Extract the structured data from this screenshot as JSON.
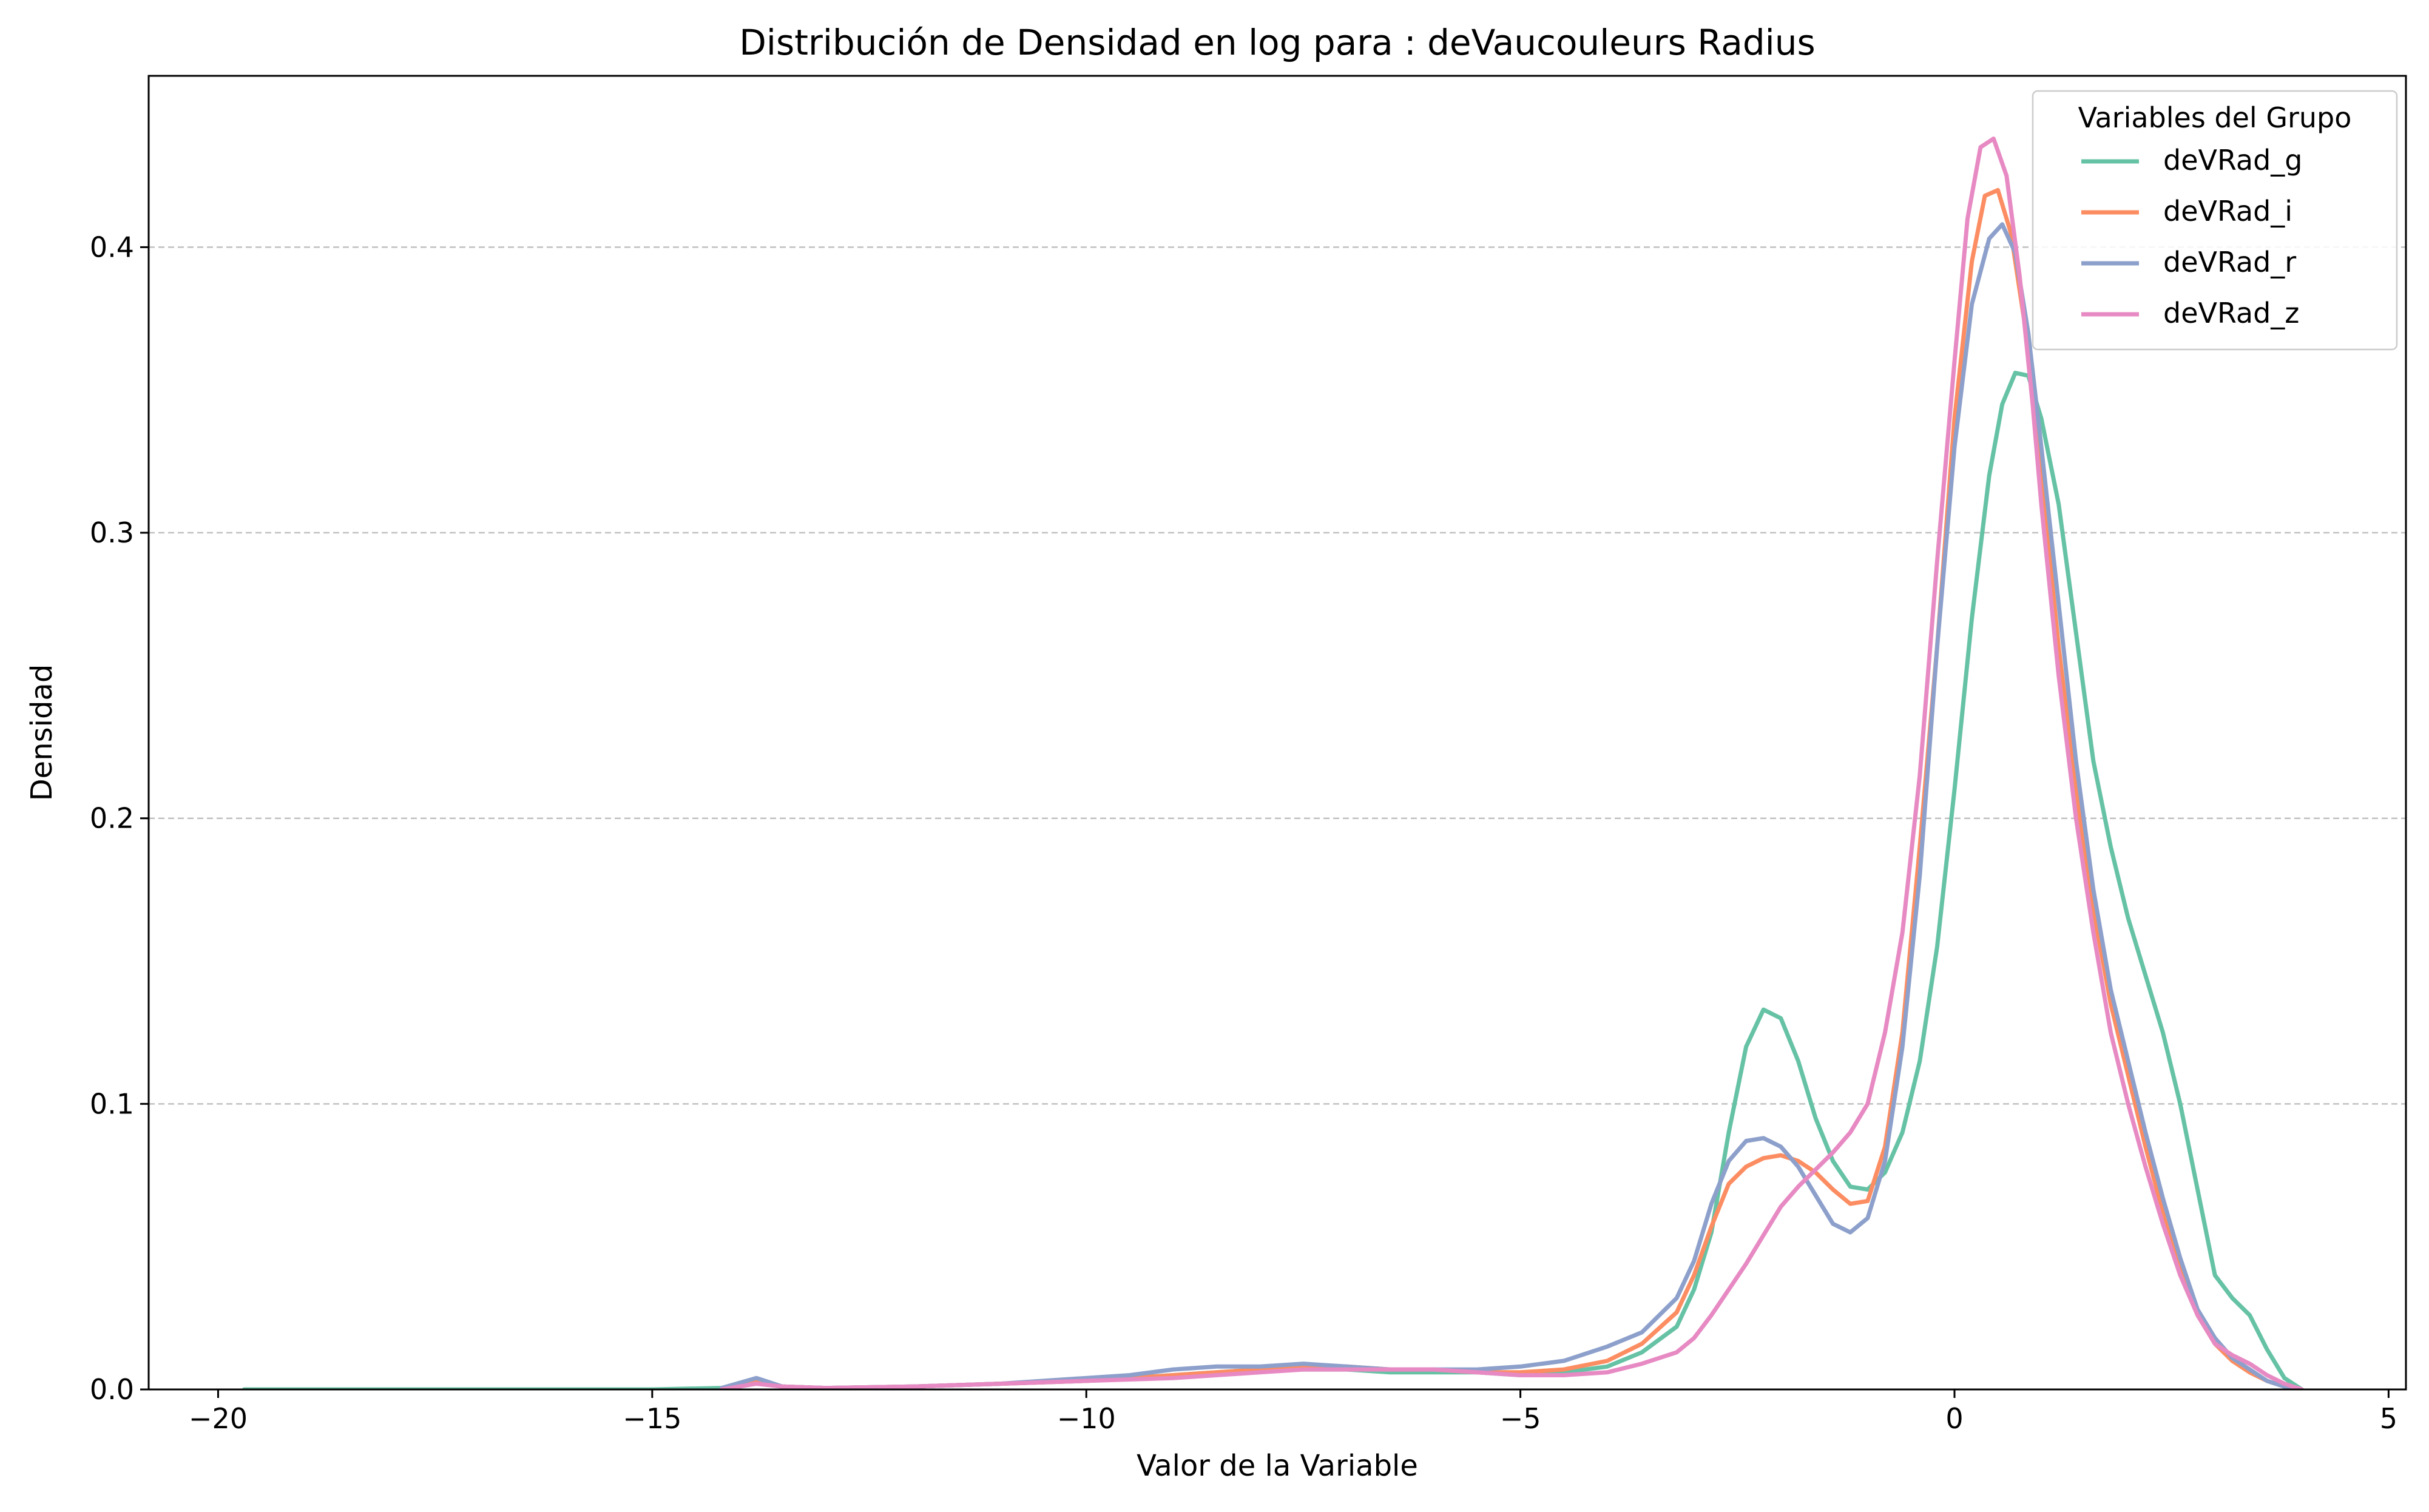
{
  "chart_data": {
    "type": "line",
    "title": "Distribución de Densidad en log para : deVaucouleurs Radius",
    "xlabel": "Valor de la Variable",
    "ylabel": "Densidad",
    "xlim": [
      -20.8,
      5.2
    ],
    "ylim": [
      0,
      0.46
    ],
    "x_ticks": [
      -20,
      -15,
      -10,
      -5,
      0,
      5
    ],
    "x_tick_labels": [
      "−20",
      "−15",
      "−10",
      "−5",
      "0",
      "5"
    ],
    "y_ticks": [
      0.0,
      0.1,
      0.2,
      0.3,
      0.4
    ],
    "y_tick_labels": [
      "0.0",
      "0.1",
      "0.2",
      "0.3",
      "0.4"
    ],
    "grid": "y dashed",
    "legend": {
      "title": "Variables del Grupo",
      "placement": "top-right"
    },
    "series": [
      {
        "name": "deVRad_g",
        "color": "#66c2a5",
        "points": [
          [
            -19.7,
            0.0
          ],
          [
            -15,
            0.0
          ],
          [
            -14.2,
            0.0005
          ],
          [
            -13.8,
            0.003
          ],
          [
            -13.5,
            0.001
          ],
          [
            -13,
            0.0005
          ],
          [
            -12,
            0.001
          ],
          [
            -11,
            0.002
          ],
          [
            -10,
            0.003
          ],
          [
            -9,
            0.005
          ],
          [
            -8.5,
            0.006
          ],
          [
            -8,
            0.007
          ],
          [
            -7.5,
            0.007
          ],
          [
            -7,
            0.007
          ],
          [
            -6.5,
            0.006
          ],
          [
            -6,
            0.006
          ],
          [
            -5.5,
            0.006
          ],
          [
            -5,
            0.005
          ],
          [
            -4.5,
            0.006
          ],
          [
            -4,
            0.008
          ],
          [
            -3.6,
            0.013
          ],
          [
            -3.2,
            0.022
          ],
          [
            -3.0,
            0.035
          ],
          [
            -2.8,
            0.055
          ],
          [
            -2.6,
            0.09
          ],
          [
            -2.4,
            0.12
          ],
          [
            -2.2,
            0.133
          ],
          [
            -2.0,
            0.13
          ],
          [
            -1.8,
            0.115
          ],
          [
            -1.6,
            0.095
          ],
          [
            -1.4,
            0.08
          ],
          [
            -1.2,
            0.071
          ],
          [
            -1.0,
            0.07
          ],
          [
            -0.8,
            0.076
          ],
          [
            -0.6,
            0.09
          ],
          [
            -0.4,
            0.115
          ],
          [
            -0.2,
            0.155
          ],
          [
            0.0,
            0.21
          ],
          [
            0.2,
            0.27
          ],
          [
            0.4,
            0.32
          ],
          [
            0.55,
            0.345
          ],
          [
            0.7,
            0.356
          ],
          [
            0.85,
            0.355
          ],
          [
            1.0,
            0.34
          ],
          [
            1.2,
            0.31
          ],
          [
            1.4,
            0.265
          ],
          [
            1.6,
            0.22
          ],
          [
            1.8,
            0.19
          ],
          [
            2.0,
            0.165
          ],
          [
            2.2,
            0.145
          ],
          [
            2.4,
            0.125
          ],
          [
            2.6,
            0.1
          ],
          [
            2.8,
            0.07
          ],
          [
            3.0,
            0.04
          ],
          [
            3.2,
            0.032
          ],
          [
            3.4,
            0.026
          ],
          [
            3.6,
            0.014
          ],
          [
            3.8,
            0.004
          ],
          [
            4.0,
            0.0
          ]
        ]
      },
      {
        "name": "deVRad_i",
        "color": "#fc8d62",
        "points": [
          [
            -14.2,
            0.0
          ],
          [
            -13.8,
            0.003
          ],
          [
            -13.5,
            0.001
          ],
          [
            -13,
            0.0005
          ],
          [
            -12,
            0.001
          ],
          [
            -11,
            0.002
          ],
          [
            -10,
            0.003
          ],
          [
            -9,
            0.005
          ],
          [
            -8.5,
            0.006
          ],
          [
            -8,
            0.007
          ],
          [
            -7.5,
            0.008
          ],
          [
            -7,
            0.008
          ],
          [
            -6.5,
            0.007
          ],
          [
            -6,
            0.007
          ],
          [
            -5.5,
            0.006
          ],
          [
            -5,
            0.006
          ],
          [
            -4.5,
            0.007
          ],
          [
            -4,
            0.01
          ],
          [
            -3.6,
            0.016
          ],
          [
            -3.2,
            0.027
          ],
          [
            -3.0,
            0.04
          ],
          [
            -2.8,
            0.057
          ],
          [
            -2.6,
            0.072
          ],
          [
            -2.4,
            0.078
          ],
          [
            -2.2,
            0.081
          ],
          [
            -2.0,
            0.082
          ],
          [
            -1.8,
            0.08
          ],
          [
            -1.6,
            0.076
          ],
          [
            -1.4,
            0.07
          ],
          [
            -1.2,
            0.065
          ],
          [
            -1.0,
            0.066
          ],
          [
            -0.8,
            0.085
          ],
          [
            -0.6,
            0.125
          ],
          [
            -0.4,
            0.19
          ],
          [
            -0.2,
            0.26
          ],
          [
            0.0,
            0.34
          ],
          [
            0.2,
            0.395
          ],
          [
            0.35,
            0.418
          ],
          [
            0.5,
            0.42
          ],
          [
            0.65,
            0.405
          ],
          [
            0.8,
            0.375
          ],
          [
            1.0,
            0.32
          ],
          [
            1.2,
            0.26
          ],
          [
            1.4,
            0.21
          ],
          [
            1.6,
            0.168
          ],
          [
            1.8,
            0.135
          ],
          [
            2.0,
            0.11
          ],
          [
            2.2,
            0.085
          ],
          [
            2.4,
            0.062
          ],
          [
            2.6,
            0.042
          ],
          [
            2.8,
            0.026
          ],
          [
            3.0,
            0.016
          ],
          [
            3.2,
            0.01
          ],
          [
            3.4,
            0.006
          ],
          [
            3.6,
            0.003
          ],
          [
            3.8,
            0.001
          ],
          [
            4.0,
            0.0
          ]
        ]
      },
      {
        "name": "deVRad_r",
        "color": "#8da0cb",
        "points": [
          [
            -14.2,
            0.0005
          ],
          [
            -13.8,
            0.004
          ],
          [
            -13.5,
            0.001
          ],
          [
            -13,
            0.0005
          ],
          [
            -12,
            0.001
          ],
          [
            -11,
            0.002
          ],
          [
            -10,
            0.004
          ],
          [
            -9.5,
            0.005
          ],
          [
            -9,
            0.007
          ],
          [
            -8.5,
            0.008
          ],
          [
            -8,
            0.008
          ],
          [
            -7.5,
            0.009
          ],
          [
            -7,
            0.008
          ],
          [
            -6.5,
            0.007
          ],
          [
            -6,
            0.007
          ],
          [
            -5.5,
            0.007
          ],
          [
            -5,
            0.008
          ],
          [
            -4.5,
            0.01
          ],
          [
            -4,
            0.015
          ],
          [
            -3.6,
            0.02
          ],
          [
            -3.2,
            0.032
          ],
          [
            -3.0,
            0.045
          ],
          [
            -2.8,
            0.065
          ],
          [
            -2.6,
            0.08
          ],
          [
            -2.4,
            0.087
          ],
          [
            -2.2,
            0.088
          ],
          [
            -2.0,
            0.085
          ],
          [
            -1.8,
            0.078
          ],
          [
            -1.6,
            0.068
          ],
          [
            -1.4,
            0.058
          ],
          [
            -1.2,
            0.055
          ],
          [
            -1.0,
            0.06
          ],
          [
            -0.8,
            0.08
          ],
          [
            -0.6,
            0.12
          ],
          [
            -0.4,
            0.18
          ],
          [
            -0.2,
            0.26
          ],
          [
            0.0,
            0.33
          ],
          [
            0.2,
            0.38
          ],
          [
            0.4,
            0.403
          ],
          [
            0.55,
            0.408
          ],
          [
            0.7,
            0.398
          ],
          [
            0.85,
            0.37
          ],
          [
            1.0,
            0.33
          ],
          [
            1.2,
            0.275
          ],
          [
            1.4,
            0.22
          ],
          [
            1.6,
            0.175
          ],
          [
            1.8,
            0.14
          ],
          [
            2.0,
            0.115
          ],
          [
            2.2,
            0.09
          ],
          [
            2.4,
            0.067
          ],
          [
            2.6,
            0.046
          ],
          [
            2.8,
            0.028
          ],
          [
            3.0,
            0.018
          ],
          [
            3.2,
            0.011
          ],
          [
            3.4,
            0.007
          ],
          [
            3.6,
            0.003
          ],
          [
            3.8,
            0.001
          ],
          [
            4.0,
            0.0
          ]
        ]
      },
      {
        "name": "deVRad_z",
        "color": "#e78ac3",
        "points": [
          [
            -14.2,
            0.0
          ],
          [
            -13.8,
            0.002
          ],
          [
            -13.5,
            0.001
          ],
          [
            -13,
            0.0005
          ],
          [
            -12,
            0.001
          ],
          [
            -11,
            0.002
          ],
          [
            -10,
            0.003
          ],
          [
            -9,
            0.004
          ],
          [
            -8.5,
            0.005
          ],
          [
            -8,
            0.006
          ],
          [
            -7.5,
            0.007
          ],
          [
            -7,
            0.007
          ],
          [
            -6.5,
            0.007
          ],
          [
            -6,
            0.007
          ],
          [
            -5.5,
            0.006
          ],
          [
            -5,
            0.005
          ],
          [
            -4.5,
            0.005
          ],
          [
            -4,
            0.006
          ],
          [
            -3.6,
            0.009
          ],
          [
            -3.2,
            0.013
          ],
          [
            -3.0,
            0.018
          ],
          [
            -2.8,
            0.026
          ],
          [
            -2.6,
            0.035
          ],
          [
            -2.4,
            0.044
          ],
          [
            -2.2,
            0.054
          ],
          [
            -2.0,
            0.064
          ],
          [
            -1.8,
            0.071
          ],
          [
            -1.6,
            0.077
          ],
          [
            -1.4,
            0.083
          ],
          [
            -1.2,
            0.09
          ],
          [
            -1.0,
            0.1
          ],
          [
            -0.8,
            0.125
          ],
          [
            -0.6,
            0.16
          ],
          [
            -0.4,
            0.215
          ],
          [
            -0.2,
            0.29
          ],
          [
            0.0,
            0.36
          ],
          [
            0.15,
            0.41
          ],
          [
            0.3,
            0.435
          ],
          [
            0.45,
            0.438
          ],
          [
            0.6,
            0.425
          ],
          [
            0.75,
            0.39
          ],
          [
            0.9,
            0.345
          ],
          [
            1.0,
            0.31
          ],
          [
            1.2,
            0.25
          ],
          [
            1.4,
            0.2
          ],
          [
            1.6,
            0.16
          ],
          [
            1.8,
            0.125
          ],
          [
            2.0,
            0.1
          ],
          [
            2.2,
            0.078
          ],
          [
            2.4,
            0.058
          ],
          [
            2.6,
            0.04
          ],
          [
            2.8,
            0.026
          ],
          [
            3.0,
            0.016
          ],
          [
            3.2,
            0.012
          ],
          [
            3.4,
            0.009
          ],
          [
            3.6,
            0.005
          ],
          [
            3.8,
            0.002
          ],
          [
            4.0,
            0.0
          ]
        ]
      }
    ]
  }
}
